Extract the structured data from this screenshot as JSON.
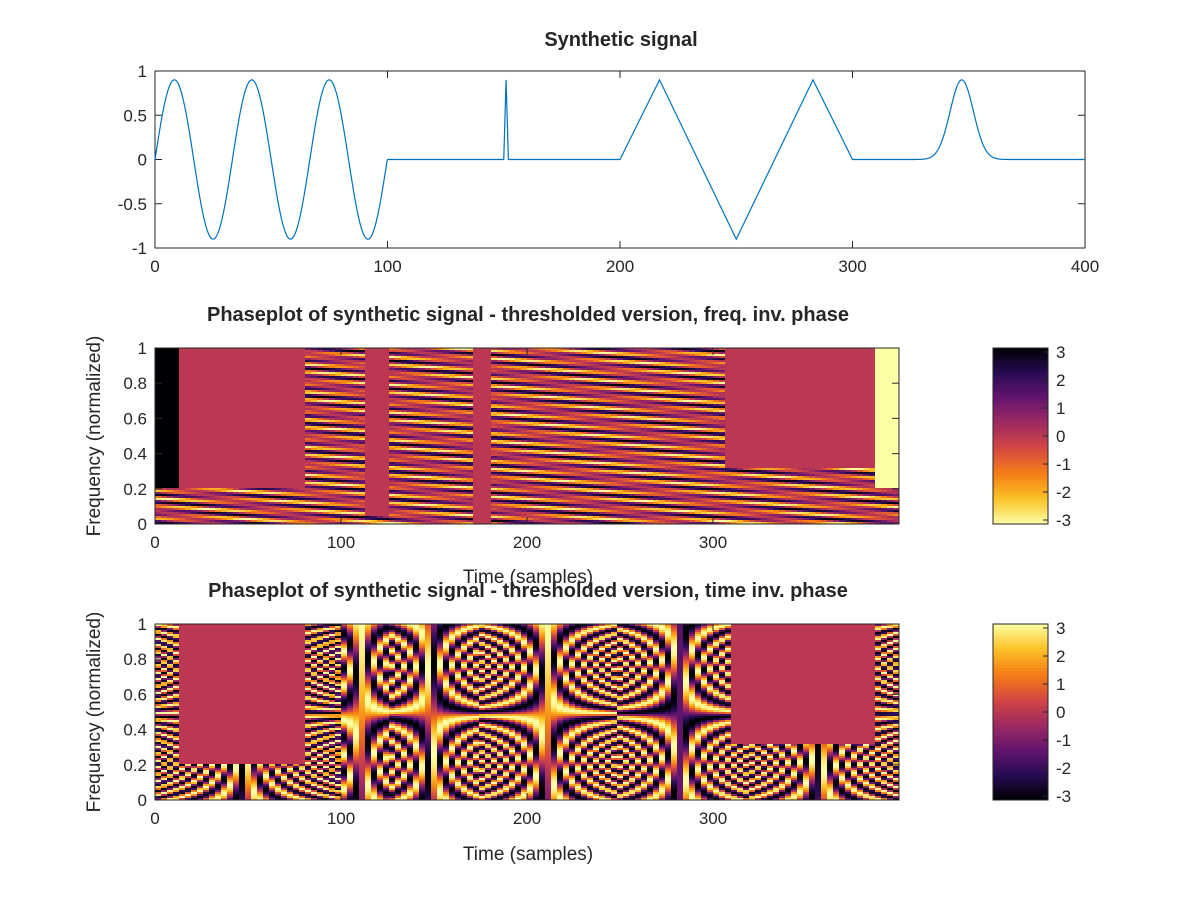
{
  "chart_data": [
    {
      "type": "line",
      "title": "Synthetic signal",
      "xlabel": "",
      "ylabel": "",
      "xlim": [
        0,
        400
      ],
      "ylim": [
        -1,
        1
      ],
      "xticks": [
        0,
        100,
        200,
        300,
        400
      ],
      "xtick_labels": [
        "0",
        "100",
        "200",
        "300",
        "400"
      ],
      "yticks": [
        -1,
        -0.5,
        0,
        0.5,
        1
      ],
      "ytick_labels": [
        "-1",
        "-0.5",
        "0",
        "0.5",
        "1"
      ],
      "grid": false,
      "line_color": "#0072bd",
      "segments": [
        {
          "kind": "sinusoid",
          "x_start": 0,
          "x_end": 100,
          "amplitude": 0.9,
          "period": 33.3
        },
        {
          "kind": "zero",
          "x_start": 100,
          "x_end": 150
        },
        {
          "kind": "impulse",
          "x": 151,
          "peak": 0.9
        },
        {
          "kind": "zero",
          "x_start": 152,
          "x_end": 200
        },
        {
          "kind": "triangle",
          "points": [
            [
              200,
              0
            ],
            [
              217,
              0.9
            ],
            [
              250,
              -0.9
            ],
            [
              283,
              0.9
            ],
            [
              300,
              0
            ]
          ]
        },
        {
          "kind": "zero",
          "x_start": 300,
          "x_end": 330
        },
        {
          "kind": "gaussian",
          "center": 347,
          "peak": 0.9,
          "width": 5
        },
        {
          "kind": "zero",
          "x_start": 365,
          "x_end": 400
        }
      ]
    },
    {
      "type": "heatmap",
      "title": "Phaseplot of synthetic signal - thresholded version, freq. inv. phase",
      "xlabel": "Time (samples)",
      "ylabel": "Frequency (normalized)",
      "xlim": [
        0,
        400
      ],
      "ylim": [
        0,
        1
      ],
      "xticks": [
        0,
        100,
        200,
        300
      ],
      "xtick_labels": [
        "0",
        "100",
        "200",
        "300"
      ],
      "yticks": [
        0,
        0.2,
        0.4,
        0.6,
        0.8,
        1
      ],
      "ytick_labels": [
        "0",
        "0.2",
        "0.4",
        "0.6",
        "0.8",
        "1"
      ],
      "colorbar": {
        "min": -3,
        "max": 3,
        "ticks": [
          "3",
          "2",
          "1",
          "0",
          "-1",
          "-2",
          "-3"
        ],
        "colormap": "inferno",
        "orientation": "reversed"
      },
      "threshold_color": "#bc3751",
      "thresholded_regions": [
        {
          "x_start": 14,
          "x_end": 80,
          "freq_floor": 0.2
        },
        {
          "x_start": 113,
          "x_end": 125,
          "freq_floor": 0.05
        },
        {
          "x_start": 172,
          "x_end": 181,
          "freq_floor": 0.0
        },
        {
          "x_start": 305,
          "x_end": 387,
          "freq_floor": 0.32
        }
      ]
    },
    {
      "type": "heatmap",
      "title": "Phaseplot of synthetic signal - thresholded version, time inv. phase",
      "xlabel": "Time (samples)",
      "ylabel": "Frequency (normalized)",
      "xlim": [
        0,
        400
      ],
      "ylim": [
        0,
        1
      ],
      "xticks": [
        0,
        100,
        200,
        300
      ],
      "xtick_labels": [
        "0",
        "100",
        "200",
        "300"
      ],
      "yticks": [
        0,
        0.2,
        0.4,
        0.6,
        0.8,
        1
      ],
      "ytick_labels": [
        "0",
        "0.2",
        "0.4",
        "0.6",
        "0.8",
        "1"
      ],
      "colorbar": {
        "min": -3,
        "max": 3,
        "ticks": [
          "3",
          "2",
          "1",
          "0",
          "-1",
          "-2",
          "-3"
        ],
        "colormap": "inferno"
      },
      "threshold_color": "#bc3751",
      "thresholded_regions": [
        {
          "x_start": 14,
          "x_end": 80,
          "freq_floor": 0.2
        },
        {
          "x_start": 310,
          "x_end": 387,
          "freq_floor": 0.32
        }
      ]
    }
  ]
}
